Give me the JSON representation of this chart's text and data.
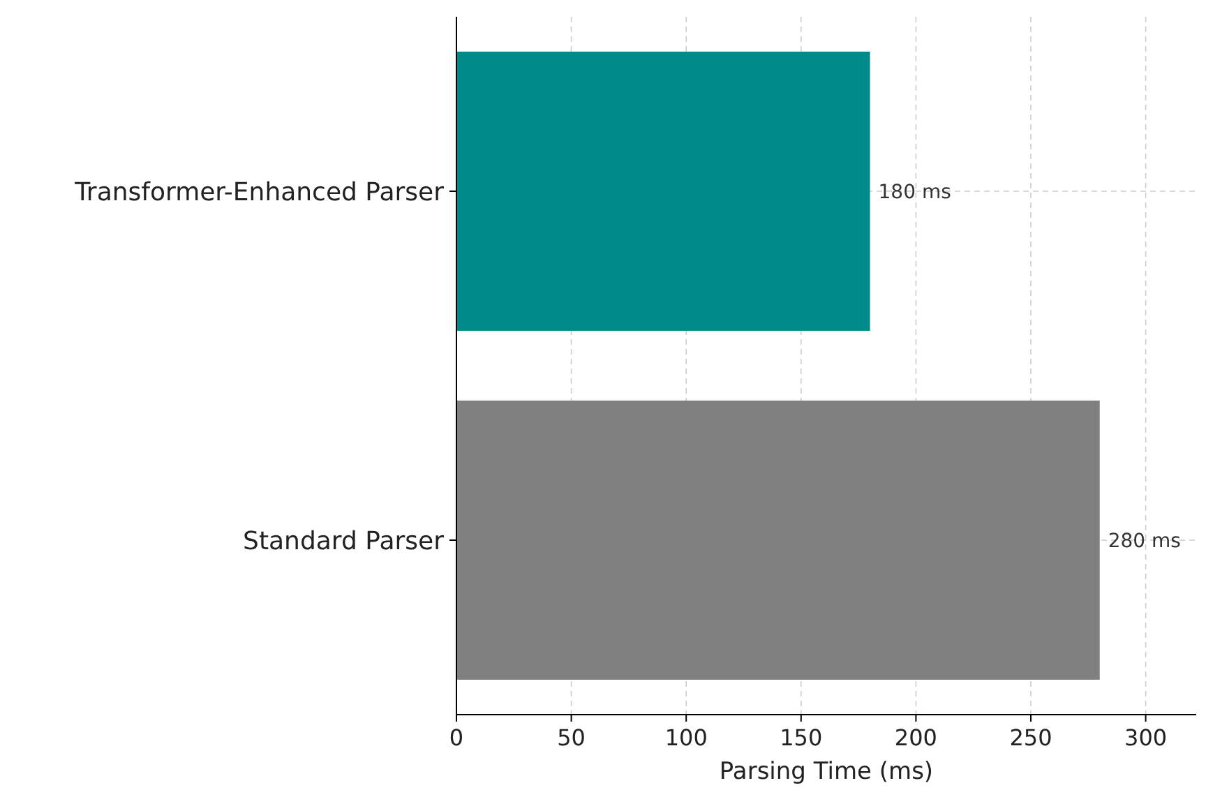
{
  "chart_data": {
    "type": "bar",
    "orientation": "horizontal",
    "categories": [
      "Transformer-Enhanced Parser",
      "Standard Parser"
    ],
    "values": [
      180,
      280
    ],
    "colors": [
      "#008b8b",
      "#808080"
    ],
    "value_labels": [
      "180 ms",
      "280 ms"
    ],
    "xlabel": "Parsing Time (ms)",
    "xlim": [
      0,
      322
    ],
    "xticks": [
      0,
      50,
      100,
      150,
      200,
      250,
      300
    ],
    "grid": true
  }
}
